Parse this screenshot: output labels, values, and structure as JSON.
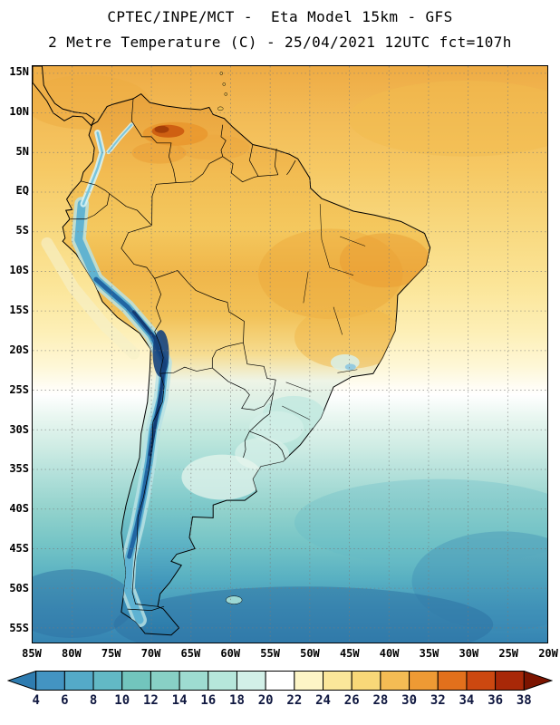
{
  "header": {
    "line1": "CPTEC/INPE/MCT -  Eta Model 15km - GFS",
    "line2": "2 Metre Temperature (C) - 25/04/2021 12UTC fct=107h"
  },
  "map": {
    "lat_labels": [
      "15N",
      "10N",
      "5N",
      "EQ",
      "5S",
      "10S",
      "15S",
      "20S",
      "25S",
      "30S",
      "35S",
      "40S",
      "45S",
      "50S",
      "55S"
    ],
    "lon_labels": [
      "85W",
      "80W",
      "75W",
      "70W",
      "65W",
      "60W",
      "55W",
      "50W",
      "45W",
      "40W",
      "35W",
      "30W",
      "25W",
      "20W"
    ]
  },
  "colorbar": {
    "tick_values": [
      "4",
      "6",
      "8",
      "10",
      "12",
      "14",
      "16",
      "18",
      "20",
      "22",
      "24",
      "26",
      "28",
      "30",
      "32",
      "34",
      "36",
      "38"
    ],
    "colors": [
      "#2e7cb0",
      "#4394c2",
      "#54aac8",
      "#62b9c5",
      "#72c5bd",
      "#88d0c5",
      "#9edcd1",
      "#b6e7db",
      "#d2f0e8",
      "#ffffff",
      "#fdf5c6",
      "#fbe79a",
      "#f8d878",
      "#f4bc54",
      "#ee9a34",
      "#e2701c",
      "#cc4810",
      "#a82808",
      "#7c1400"
    ]
  }
}
